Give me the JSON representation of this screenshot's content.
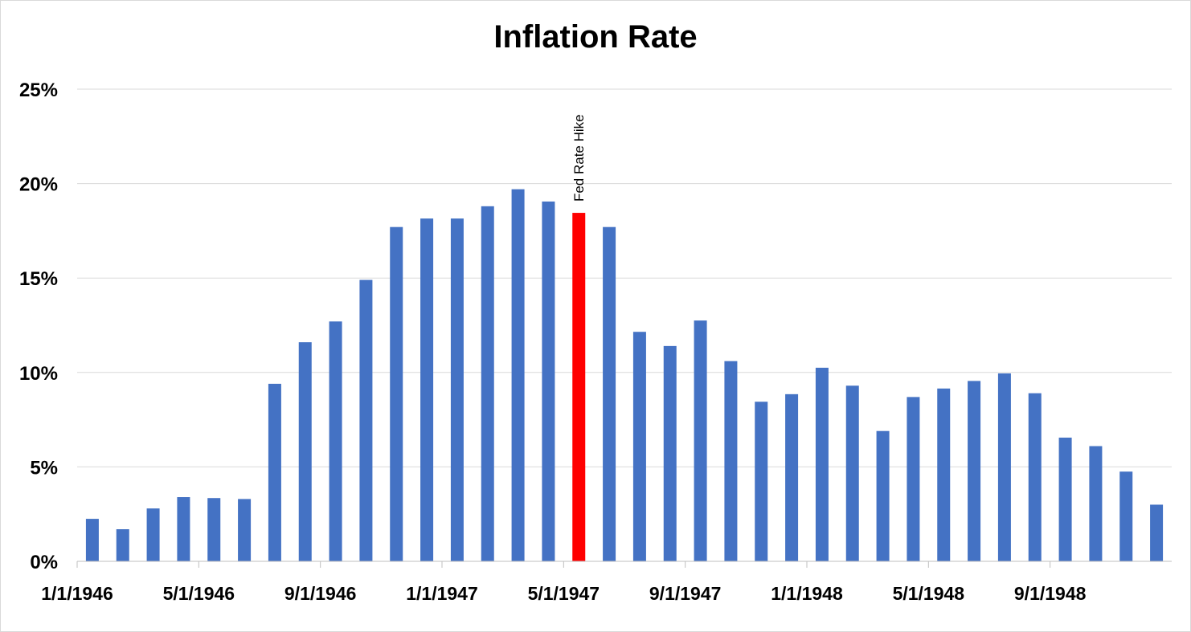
{
  "chart_data": {
    "type": "bar",
    "title": "Inflation Rate",
    "xlabel": "",
    "ylabel": "",
    "ylim": [
      0,
      25
    ],
    "y_ticks": [
      "0%",
      "5%",
      "10%",
      "15%",
      "20%",
      "25%"
    ],
    "y_tick_values": [
      0,
      5,
      10,
      15,
      20,
      25
    ],
    "grid": true,
    "legend": "none",
    "x_tick_labels": [
      "1/1/1946",
      "5/1/1946",
      "9/1/1946",
      "1/1/1947",
      "5/1/1947",
      "9/1/1947",
      "1/1/1948",
      "5/1/1948",
      "9/1/1948"
    ],
    "categories": [
      "1/1/1946",
      "2/1/1946",
      "3/1/1946",
      "4/1/1946",
      "5/1/1946",
      "6/1/1946",
      "7/1/1946",
      "8/1/1946",
      "9/1/1946",
      "10/1/1946",
      "11/1/1946",
      "12/1/1946",
      "1/1/1947",
      "2/1/1947",
      "3/1/1947",
      "4/1/1947",
      "5/1/1947",
      "6/1/1947",
      "7/1/1947",
      "8/1/1947",
      "9/1/1947",
      "10/1/1947",
      "11/1/1947",
      "12/1/1947",
      "1/1/1948",
      "2/1/1948",
      "3/1/1948",
      "4/1/1948",
      "5/1/1948",
      "6/1/1948",
      "7/1/1948",
      "8/1/1948",
      "9/1/1948",
      "10/1/1948",
      "11/1/1948",
      "12/1/1948"
    ],
    "values": [
      2.25,
      1.7,
      2.8,
      3.4,
      3.35,
      3.3,
      9.4,
      11.6,
      12.7,
      14.9,
      17.7,
      18.15,
      18.15,
      18.8,
      19.7,
      19.05,
      18.45,
      17.7,
      12.15,
      11.4,
      12.75,
      10.6,
      8.45,
      8.85,
      10.25,
      9.3,
      6.9,
      8.7,
      9.15,
      9.55,
      9.95,
      8.9,
      6.55,
      6.1,
      4.75,
      3.0
    ],
    "colors": {
      "bar": "#4472c4",
      "highlight": "#ff0000",
      "grid": "#d9d9d9",
      "axis": "#bfbfbf"
    },
    "annotations": [
      {
        "text": "Fed Rate Hike",
        "category": "5/1/1947"
      }
    ]
  }
}
